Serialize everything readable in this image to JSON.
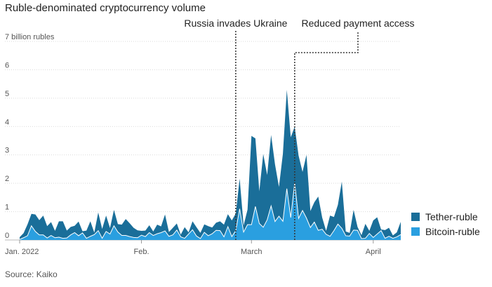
{
  "chart_data": {
    "type": "area",
    "title": "Ruble-denominated cryptocurrency volume",
    "ylabel": "",
    "y_unit_label": "7 billion rubles",
    "ylim": [
      0,
      7
    ],
    "yticks": [
      "0",
      "1",
      "2",
      "3",
      "4",
      "5",
      "6",
      "7 billion rubles"
    ],
    "x_range_days": [
      0,
      97
    ],
    "xticks": [
      {
        "label": "Jan. 2022",
        "day": 0
      },
      {
        "label": "Feb.",
        "day": 31
      },
      {
        "label": "March",
        "day": 59
      },
      {
        "label": "April",
        "day": 90
      }
    ],
    "grid": true,
    "legend_position": "right",
    "source": "Source: Kaiko",
    "annotations": [
      {
        "label": "Russia invades Ukraine",
        "day": 55
      },
      {
        "label": "Reduced payment access",
        "day": 70
      }
    ],
    "series": [
      {
        "name": "Tether-ruble",
        "color": "#1a6e99",
        "stacked": true,
        "values": [
          0.08,
          0.16,
          0.4,
          0.42,
          0.6,
          0.52,
          0.68,
          0.42,
          0.47,
          0.24,
          0.56,
          0.6,
          0.26,
          0.28,
          0.24,
          0.5,
          0.06,
          0.27,
          0.53,
          0.07,
          0.64,
          0.33,
          0.56,
          0.21,
          0.56,
          0.28,
          0.38,
          0.58,
          0.47,
          0.34,
          0.26,
          0.15,
          0.21,
          0.26,
          0.14,
          0.32,
          0.22,
          0.58,
          0.15,
          0.25,
          0.23,
          0.08,
          0.39,
          0.06,
          0.3,
          0.31,
          0.2,
          0.28,
          0.34,
          0.22,
          0.27,
          0.33,
          0.43,
          0.44,
          0.57,
          0.6,
          1.06,
          0.23,
          0.53,
          3.13,
          2.4,
          1.14,
          2.58,
          1.58,
          2.5,
          2.01,
          1.03,
          2.38,
          3.48,
          2.83,
          1.98,
          2.21,
          1.36,
          2.23,
          0.58,
          0.7,
          1.19,
          0.41,
          0.12,
          0.73,
          0.48,
          0.68,
          1.65,
          0.15,
          0.11,
          0.71,
          0.12,
          0.12,
          0.51,
          0.09,
          0.6,
          0.59,
          0.04,
          0.29,
          0.3,
          0.1,
          0.16,
          0.45
        ]
      },
      {
        "name": "Bitcoin-ruble",
        "color": "#2a9fe0",
        "stacked": true,
        "values": [
          0.02,
          0.08,
          0.15,
          0.5,
          0.3,
          0.18,
          0.18,
          0.07,
          0.16,
          0.08,
          0.1,
          0.06,
          0.07,
          0.18,
          0.26,
          0.15,
          0.25,
          0.06,
          0.13,
          0.19,
          0.33,
          0.06,
          0.3,
          0.21,
          0.5,
          0.28,
          0.16,
          0.16,
          0.12,
          0.09,
          0.08,
          0.17,
          0.12,
          0.26,
          0.16,
          0.22,
          0.26,
          0.32,
          0.13,
          0.18,
          0.35,
          0.11,
          0.06,
          0.21,
          0.36,
          0.14,
          0.05,
          0.27,
          0.15,
          0.22,
          0.34,
          0.33,
          0.11,
          0.47,
          0.12,
          0.33,
          1.1,
          0.28,
          0.54,
          0.54,
          1.18,
          0.58,
          0.45,
          0.71,
          1.2,
          0.65,
          0.84,
          0.66,
          1.81,
          0.79,
          2.01,
          0.76,
          1.04,
          0.77,
          0.44,
          0.63,
          0.34,
          0.38,
          0.2,
          0.13,
          0.33,
          0.56,
          0.41,
          0.15,
          0.14,
          0.35,
          0.34,
          0.05,
          0.06,
          0.23,
          0.09,
          0.21,
          0.33,
          0.06,
          0.13,
          0.06,
          0.11,
          0.19
        ]
      }
    ]
  }
}
